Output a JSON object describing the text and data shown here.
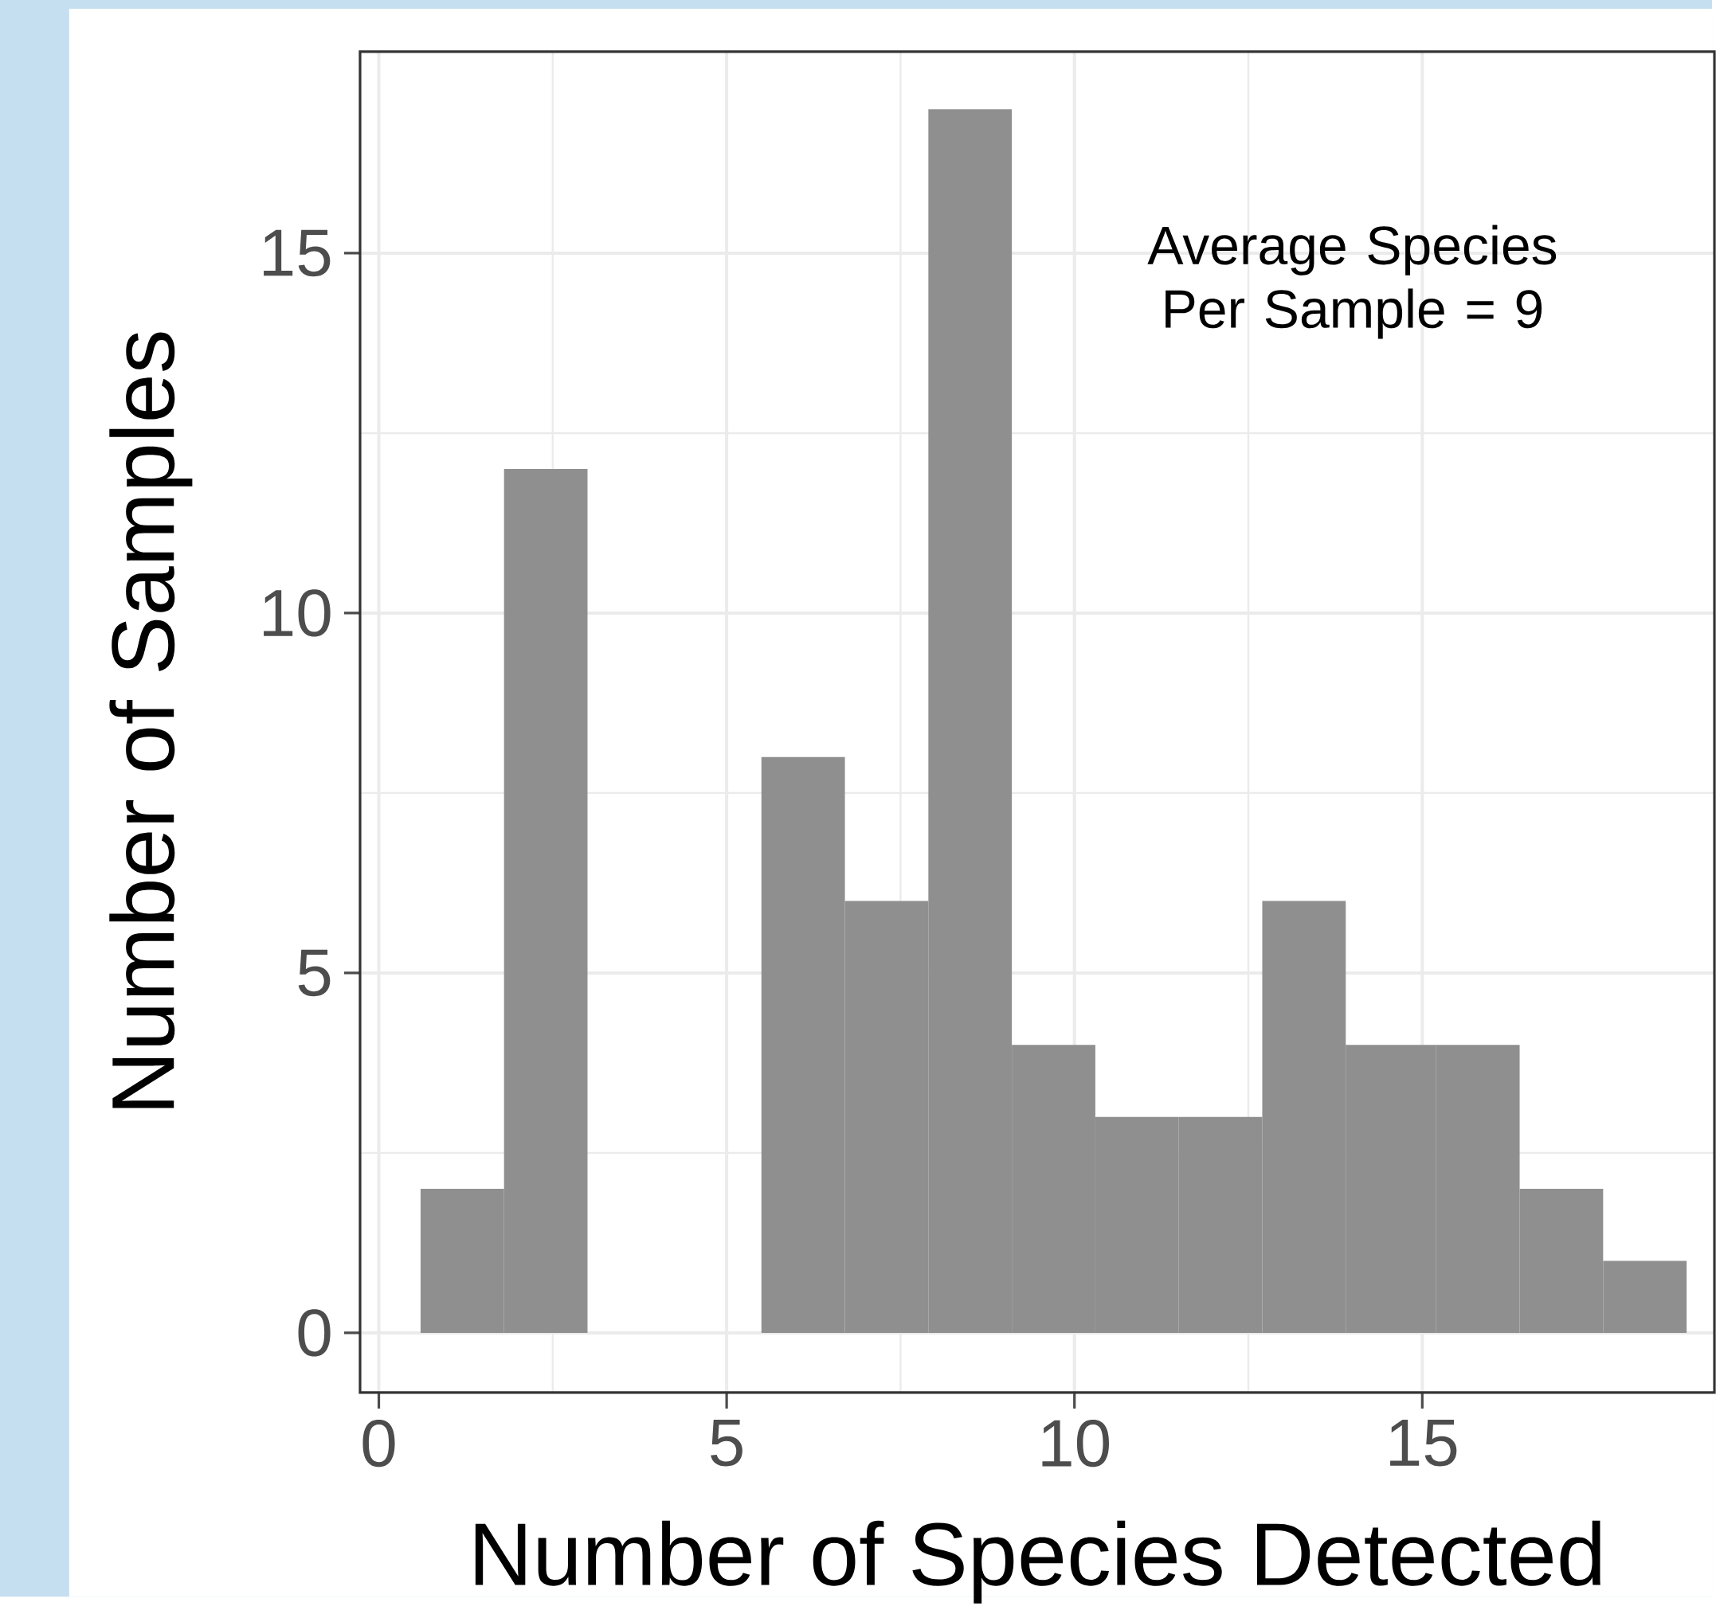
{
  "chart_data": {
    "type": "histogram",
    "xlabel": "Number of Species Detected",
    "ylabel": "Number of Samples",
    "annotations": [
      "Average Species Per Sample = 9"
    ],
    "bins": [
      0.6,
      1.8,
      3.0,
      5.5,
      6.7,
      7.9,
      9.1,
      10.3,
      11.5,
      12.7,
      13.9,
      15.2,
      16.4,
      17.6,
      18.8
    ],
    "values": [
      2,
      12,
      0,
      8,
      6,
      17,
      4,
      3,
      3,
      6,
      4,
      4,
      2,
      1
    ],
    "color": "#8f8f8f",
    "xlim": [
      -0.27,
      19.2
    ],
    "ylim": [
      -0.83,
      17.8
    ],
    "xticks": [
      0,
      5,
      10,
      15
    ],
    "yticks": [
      0,
      5,
      10,
      15
    ],
    "grid": true
  }
}
